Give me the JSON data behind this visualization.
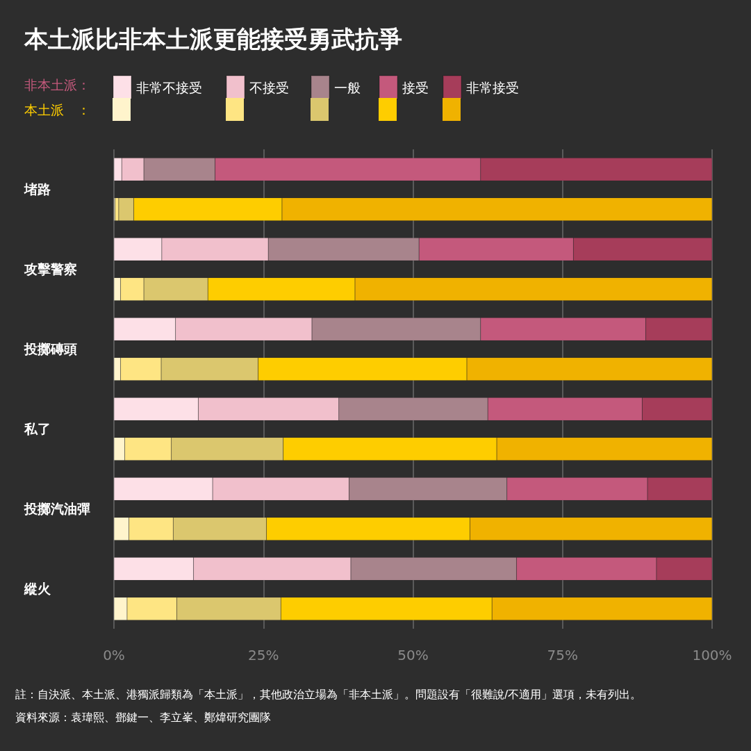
{
  "chart_data": {
    "type": "bar",
    "orientation": "horizontal",
    "stacked": true,
    "title": "本土派比非本土派更能接受勇武抗爭",
    "categories": [
      "堵路",
      null,
      "攻擊警察",
      null,
      "投擲磚頭",
      null,
      "私了",
      null,
      "投擲汽油彈",
      null,
      "縱火",
      null
    ],
    "legend_title": [
      "非本土派：",
      "本土派　："
    ],
    "series": [
      {
        "name": "非常不接受",
        "color": "#fde0e7",
        "values": [
          1.3,
          null,
          8.0,
          null,
          10.3,
          null,
          14.1,
          null,
          16.5,
          null,
          13.3,
          null
        ]
      },
      {
        "name": "不接受",
        "color": "#f1c0cc",
        "values": [
          3.7,
          null,
          17.8,
          null,
          22.8,
          null,
          23.5,
          null,
          22.8,
          null,
          26.3,
          null
        ]
      },
      {
        "name": "一般",
        "color": "#a8848c",
        "values": [
          11.9,
          null,
          25.2,
          null,
          28.2,
          null,
          24.9,
          null,
          26.4,
          null,
          27.7,
          null
        ]
      },
      {
        "name": "接受",
        "color": "#c4597c",
        "values": [
          44.4,
          null,
          25.8,
          null,
          27.6,
          null,
          25.8,
          null,
          23.5,
          null,
          23.4,
          null
        ]
      },
      {
        "name": "非常接受",
        "color": "#a63d5a",
        "values": [
          38.7,
          null,
          23.2,
          null,
          11.1,
          null,
          11.7,
          null,
          10.8,
          null,
          9.3,
          null
        ]
      },
      {
        "color": "#fff4cc",
        "values": [
          null,
          0.2,
          null,
          1.1,
          null,
          1.1,
          null,
          1.8,
          null,
          2.5,
          null,
          2.2
        ]
      },
      {
        "color": "#fee583",
        "values": [
          null,
          0.6,
          null,
          3.9,
          null,
          6.8,
          null,
          7.8,
          null,
          7.4,
          null,
          8.3
        ]
      },
      {
        "color": "#dbc76e",
        "values": [
          null,
          2.5,
          null,
          10.7,
          null,
          16.2,
          null,
          18.7,
          null,
          15.6,
          null,
          17.4
        ]
      },
      {
        "color": "#fecd00",
        "values": [
          null,
          24.8,
          null,
          24.6,
          null,
          34.9,
          null,
          35.7,
          null,
          34.0,
          null,
          35.3
        ]
      },
      {
        "color": "#f0b200",
        "values": [
          null,
          71.9,
          null,
          59.7,
          null,
          41.0,
          null,
          36.0,
          null,
          40.5,
          null,
          36.8
        ]
      }
    ],
    "xlim": [
      0,
      100
    ],
    "xticks": [
      {
        "value": 0,
        "label": "0%"
      },
      {
        "value": 25,
        "label": "25%"
      },
      {
        "value": 50,
        "label": "50%"
      },
      {
        "value": 75,
        "label": "75%"
      },
      {
        "value": 100,
        "label": "100%"
      }
    ],
    "grid": "x",
    "legend": "top left",
    "annotations": [
      "註：自決派、本土派、港獨派歸類為「本土派」，其他政治立場為「非本土派」。問題設有「很難說/不適用」選項，未有列出。",
      "資料來源：袁瑋熙、鄧鍵一、李立峯、鄭煒研究團隊"
    ]
  }
}
